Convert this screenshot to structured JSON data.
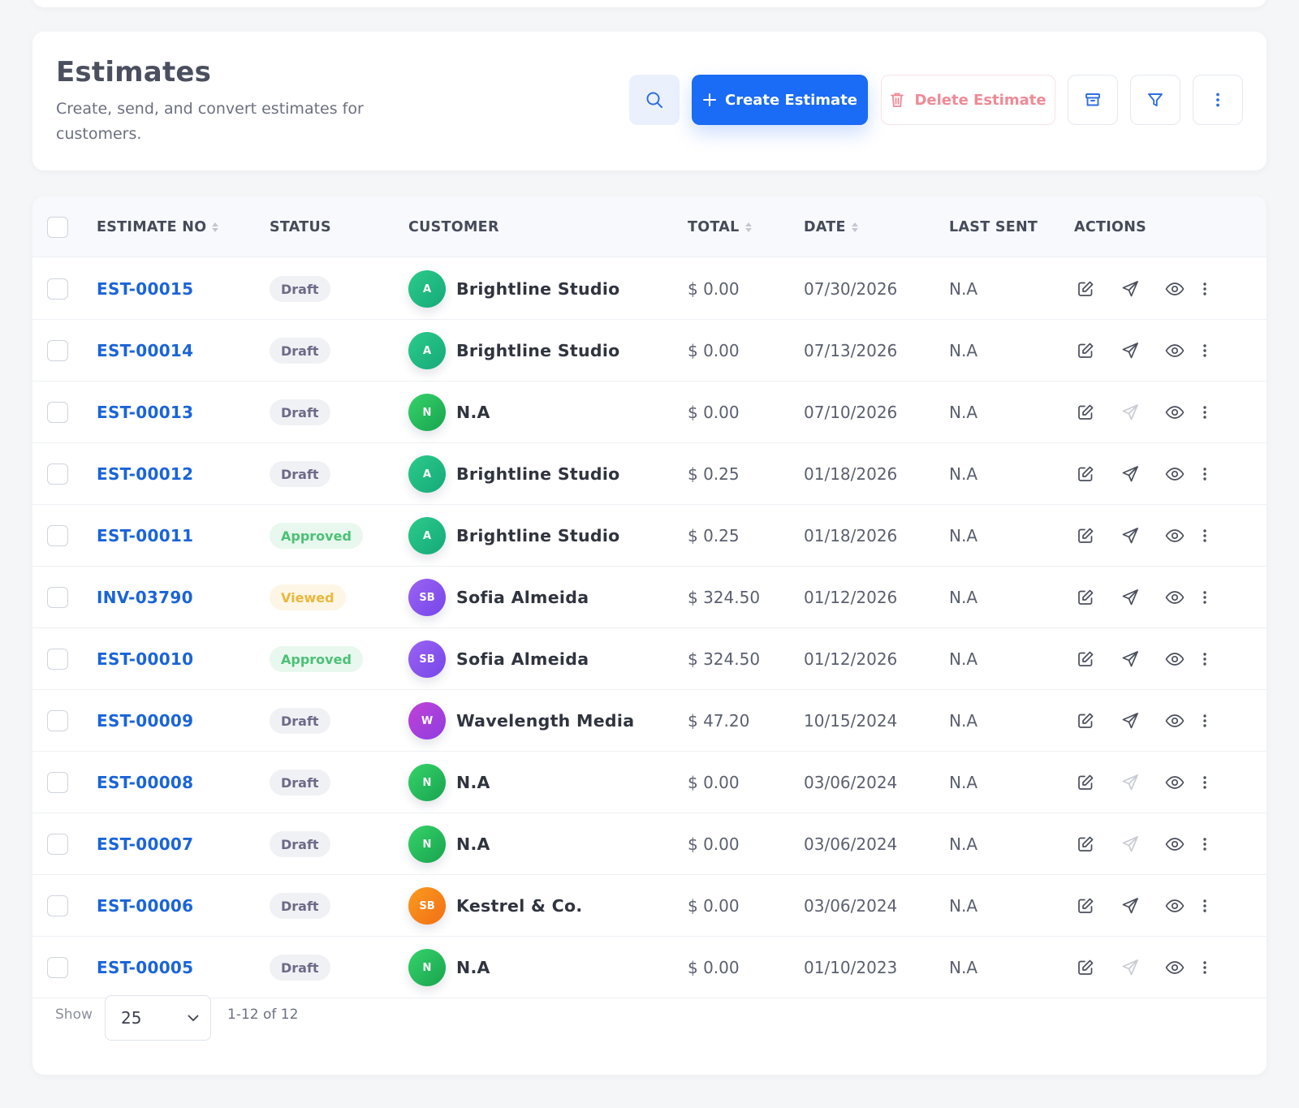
{
  "header": {
    "title": "Estimates",
    "subtitle": "Create, send, and convert estimates for customers.",
    "create_label": "Create Estimate",
    "delete_label": "Delete Estimate"
  },
  "table": {
    "columns": {
      "estimate_no": "ESTIMATE NO",
      "status": "STATUS",
      "customer": "CUSTOMER",
      "total": "TOTAL",
      "date": "DATE",
      "last_sent": "LAST SENT",
      "actions": "ACTIONS"
    },
    "rows": [
      {
        "no": "EST-00015",
        "status": "Draft",
        "status_type": "draft",
        "initials": "A",
        "avatar": "green",
        "customer": "Brightline Studio",
        "total": "$ 0.00",
        "date": "07/30/2026",
        "last_sent": "N.A",
        "send_enabled": true
      },
      {
        "no": "EST-00014",
        "status": "Draft",
        "status_type": "draft",
        "initials": "A",
        "avatar": "green",
        "customer": "Brightline Studio",
        "total": "$ 0.00",
        "date": "07/13/2026",
        "last_sent": "N.A",
        "send_enabled": true
      },
      {
        "no": "EST-00013",
        "status": "Draft",
        "status_type": "draft",
        "initials": "N",
        "avatar": "lime",
        "customer": "N.A",
        "total": "$ 0.00",
        "date": "07/10/2026",
        "last_sent": "N.A",
        "send_enabled": false
      },
      {
        "no": "EST-00012",
        "status": "Draft",
        "status_type": "draft",
        "initials": "A",
        "avatar": "green",
        "customer": "Brightline Studio",
        "total": "$ 0.25",
        "date": "01/18/2026",
        "last_sent": "N.A",
        "send_enabled": true
      },
      {
        "no": "EST-00011",
        "status": "Approved",
        "status_type": "approved",
        "initials": "A",
        "avatar": "green",
        "customer": "Brightline Studio",
        "total": "$ 0.25",
        "date": "01/18/2026",
        "last_sent": "N.A",
        "send_enabled": true
      },
      {
        "no": "INV-03790",
        "status": "Viewed",
        "status_type": "viewed",
        "initials": "SB",
        "avatar": "purple",
        "customer": "Sofia Almeida",
        "total": "$ 324.50",
        "date": "01/12/2026",
        "last_sent": "N.A",
        "send_enabled": true
      },
      {
        "no": "EST-00010",
        "status": "Approved",
        "status_type": "approved",
        "initials": "SB",
        "avatar": "purple",
        "customer": "Sofia Almeida",
        "total": "$ 324.50",
        "date": "01/12/2026",
        "last_sent": "N.A",
        "send_enabled": true
      },
      {
        "no": "EST-00009",
        "status": "Draft",
        "status_type": "draft",
        "initials": "W",
        "avatar": "magenta",
        "customer": "Wavelength Media",
        "total": "$ 47.20",
        "date": "10/15/2024",
        "last_sent": "N.A",
        "send_enabled": true
      },
      {
        "no": "EST-00008",
        "status": "Draft",
        "status_type": "draft",
        "initials": "N",
        "avatar": "lime",
        "customer": "N.A",
        "total": "$ 0.00",
        "date": "03/06/2024",
        "last_sent": "N.A",
        "send_enabled": false
      },
      {
        "no": "EST-00007",
        "status": "Draft",
        "status_type": "draft",
        "initials": "N",
        "avatar": "lime",
        "customer": "N.A",
        "total": "$ 0.00",
        "date": "03/06/2024",
        "last_sent": "N.A",
        "send_enabled": false
      },
      {
        "no": "EST-00006",
        "status": "Draft",
        "status_type": "draft",
        "initials": "SB",
        "avatar": "orange",
        "customer": "Kestrel & Co.",
        "total": "$ 0.00",
        "date": "03/06/2024",
        "last_sent": "N.A",
        "send_enabled": true
      },
      {
        "no": "EST-00005",
        "status": "Draft",
        "status_type": "draft",
        "initials": "N",
        "avatar": "lime",
        "customer": "N.A",
        "total": "$ 0.00",
        "date": "01/10/2023",
        "last_sent": "N.A",
        "send_enabled": false
      }
    ]
  },
  "footer": {
    "show_label": "Show",
    "page_size": "25",
    "range": "1-12 of 12"
  },
  "colors": {
    "accent": "#1a6bf5",
    "link": "#1a64d8",
    "danger": "#ee8a96"
  }
}
